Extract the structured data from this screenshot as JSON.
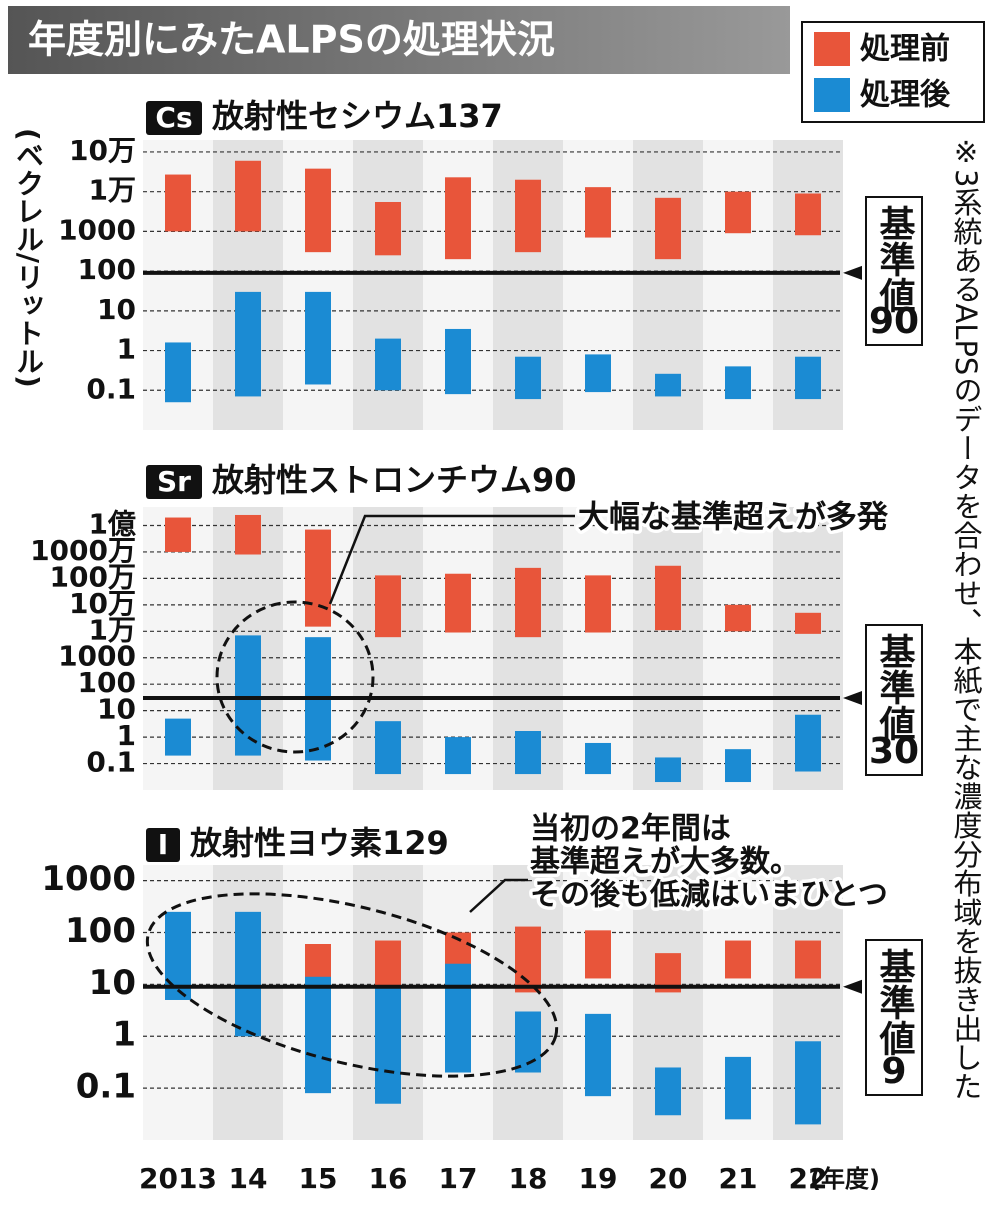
{
  "title": "年度別にみたALPSの処理状況",
  "y_axis_label": "(ベクレル/リットル)",
  "note": "※3系統あるALPSのデータを合わせ、本紙で主な濃度分布域を抜き出した",
  "x_unit_label": "(年度)",
  "chart_data": [
    {
      "type": "bar",
      "badge": "Cs",
      "title": "放射性セシウム137",
      "log_scale": true,
      "grid": true,
      "ylim": [
        0.01,
        200000
      ],
      "yticks": [
        {
          "value": 100000,
          "label": "10万"
        },
        {
          "value": 10000,
          "label": "1万"
        },
        1000,
        100,
        10,
        1,
        0.1
      ],
      "threshold": 90,
      "threshold_label": "基準値",
      "series": [
        {
          "name": "処理前",
          "color": "#e8553a",
          "low": [
            1000,
            1000,
            300,
            250,
            200,
            300,
            700,
            200,
            900,
            800
          ],
          "high": [
            27000,
            60000,
            38000,
            5500,
            23000,
            20000,
            13000,
            7000,
            10000,
            9000
          ]
        },
        {
          "name": "処理後",
          "color": "#1b8bd3",
          "low": [
            0.05,
            0.07,
            0.14,
            0.1,
            0.08,
            0.06,
            0.09,
            0.07,
            0.06,
            0.06
          ],
          "high": [
            1.6,
            30,
            30,
            2,
            3.5,
            0.7,
            0.8,
            0.26,
            0.4,
            0.7
          ]
        }
      ]
    },
    {
      "type": "bar",
      "badge": "Sr",
      "title": "放射性ストロンチウム90",
      "log_scale": true,
      "grid": true,
      "ylim": [
        0.01,
        500000000
      ],
      "yticks": [
        {
          "value": 100000000,
          "label": "1億"
        },
        {
          "value": 10000000,
          "label": "1000万"
        },
        {
          "value": 1000000,
          "label": "100万"
        },
        {
          "value": 100000,
          "label": "10万"
        },
        {
          "value": 10000,
          "label": "1万"
        },
        1000,
        100,
        10,
        1,
        0.1
      ],
      "threshold": 30,
      "threshold_label": "基準値",
      "annotation": "大幅な基準超えが多発",
      "series": [
        {
          "color": "#e8553a",
          "low": [
            10000000,
            8000000,
            15000,
            6000,
            9000,
            6000,
            9000,
            11000,
            10000,
            8000
          ],
          "high": [
            200000000,
            250000000,
            70000000,
            1300000,
            1500000,
            2500000,
            1300000,
            3000000,
            100000,
            50000
          ]
        },
        {
          "color": "#1b8bd3",
          "low": [
            0.2,
            0.2,
            0.13,
            0.04,
            0.04,
            0.04,
            0.04,
            0.02,
            0.02,
            0.05
          ],
          "high": [
            5,
            7000,
            6000,
            4,
            1,
            1.7,
            0.6,
            0.17,
            0.35,
            7
          ]
        }
      ]
    },
    {
      "type": "bar",
      "badge": "I",
      "title": "放射性ヨウ素129",
      "log_scale": true,
      "grid": true,
      "ylim": [
        0.01,
        2000
      ],
      "yticks": [
        1000,
        100,
        10,
        1,
        0.1
      ],
      "threshold": 9,
      "threshold_label": "基準値",
      "annotation": [
        "当初の2年間は",
        "基準超えが大多数。",
        "その後も低減はいまひとつ"
      ],
      "categories": [
        "2013",
        "14",
        "15",
        "16",
        "17",
        "18",
        "19",
        "20",
        "21",
        "22"
      ],
      "series": [
        {
          "color": "#e8553a",
          "low": [
            null,
            null,
            5.6,
            4.5,
            13,
            7,
            13,
            7,
            13,
            13
          ],
          "high": [
            null,
            null,
            60,
            70,
            100,
            130,
            110,
            40,
            70,
            70
          ]
        },
        {
          "color": "#1b8bd3",
          "low": [
            5,
            1,
            0.08,
            0.05,
            0.2,
            0.2,
            0.07,
            0.03,
            0.025,
            0.02
          ],
          "high": [
            250,
            250,
            14,
            9,
            25,
            3,
            2.7,
            0.25,
            0.4,
            0.8
          ]
        }
      ]
    }
  ]
}
